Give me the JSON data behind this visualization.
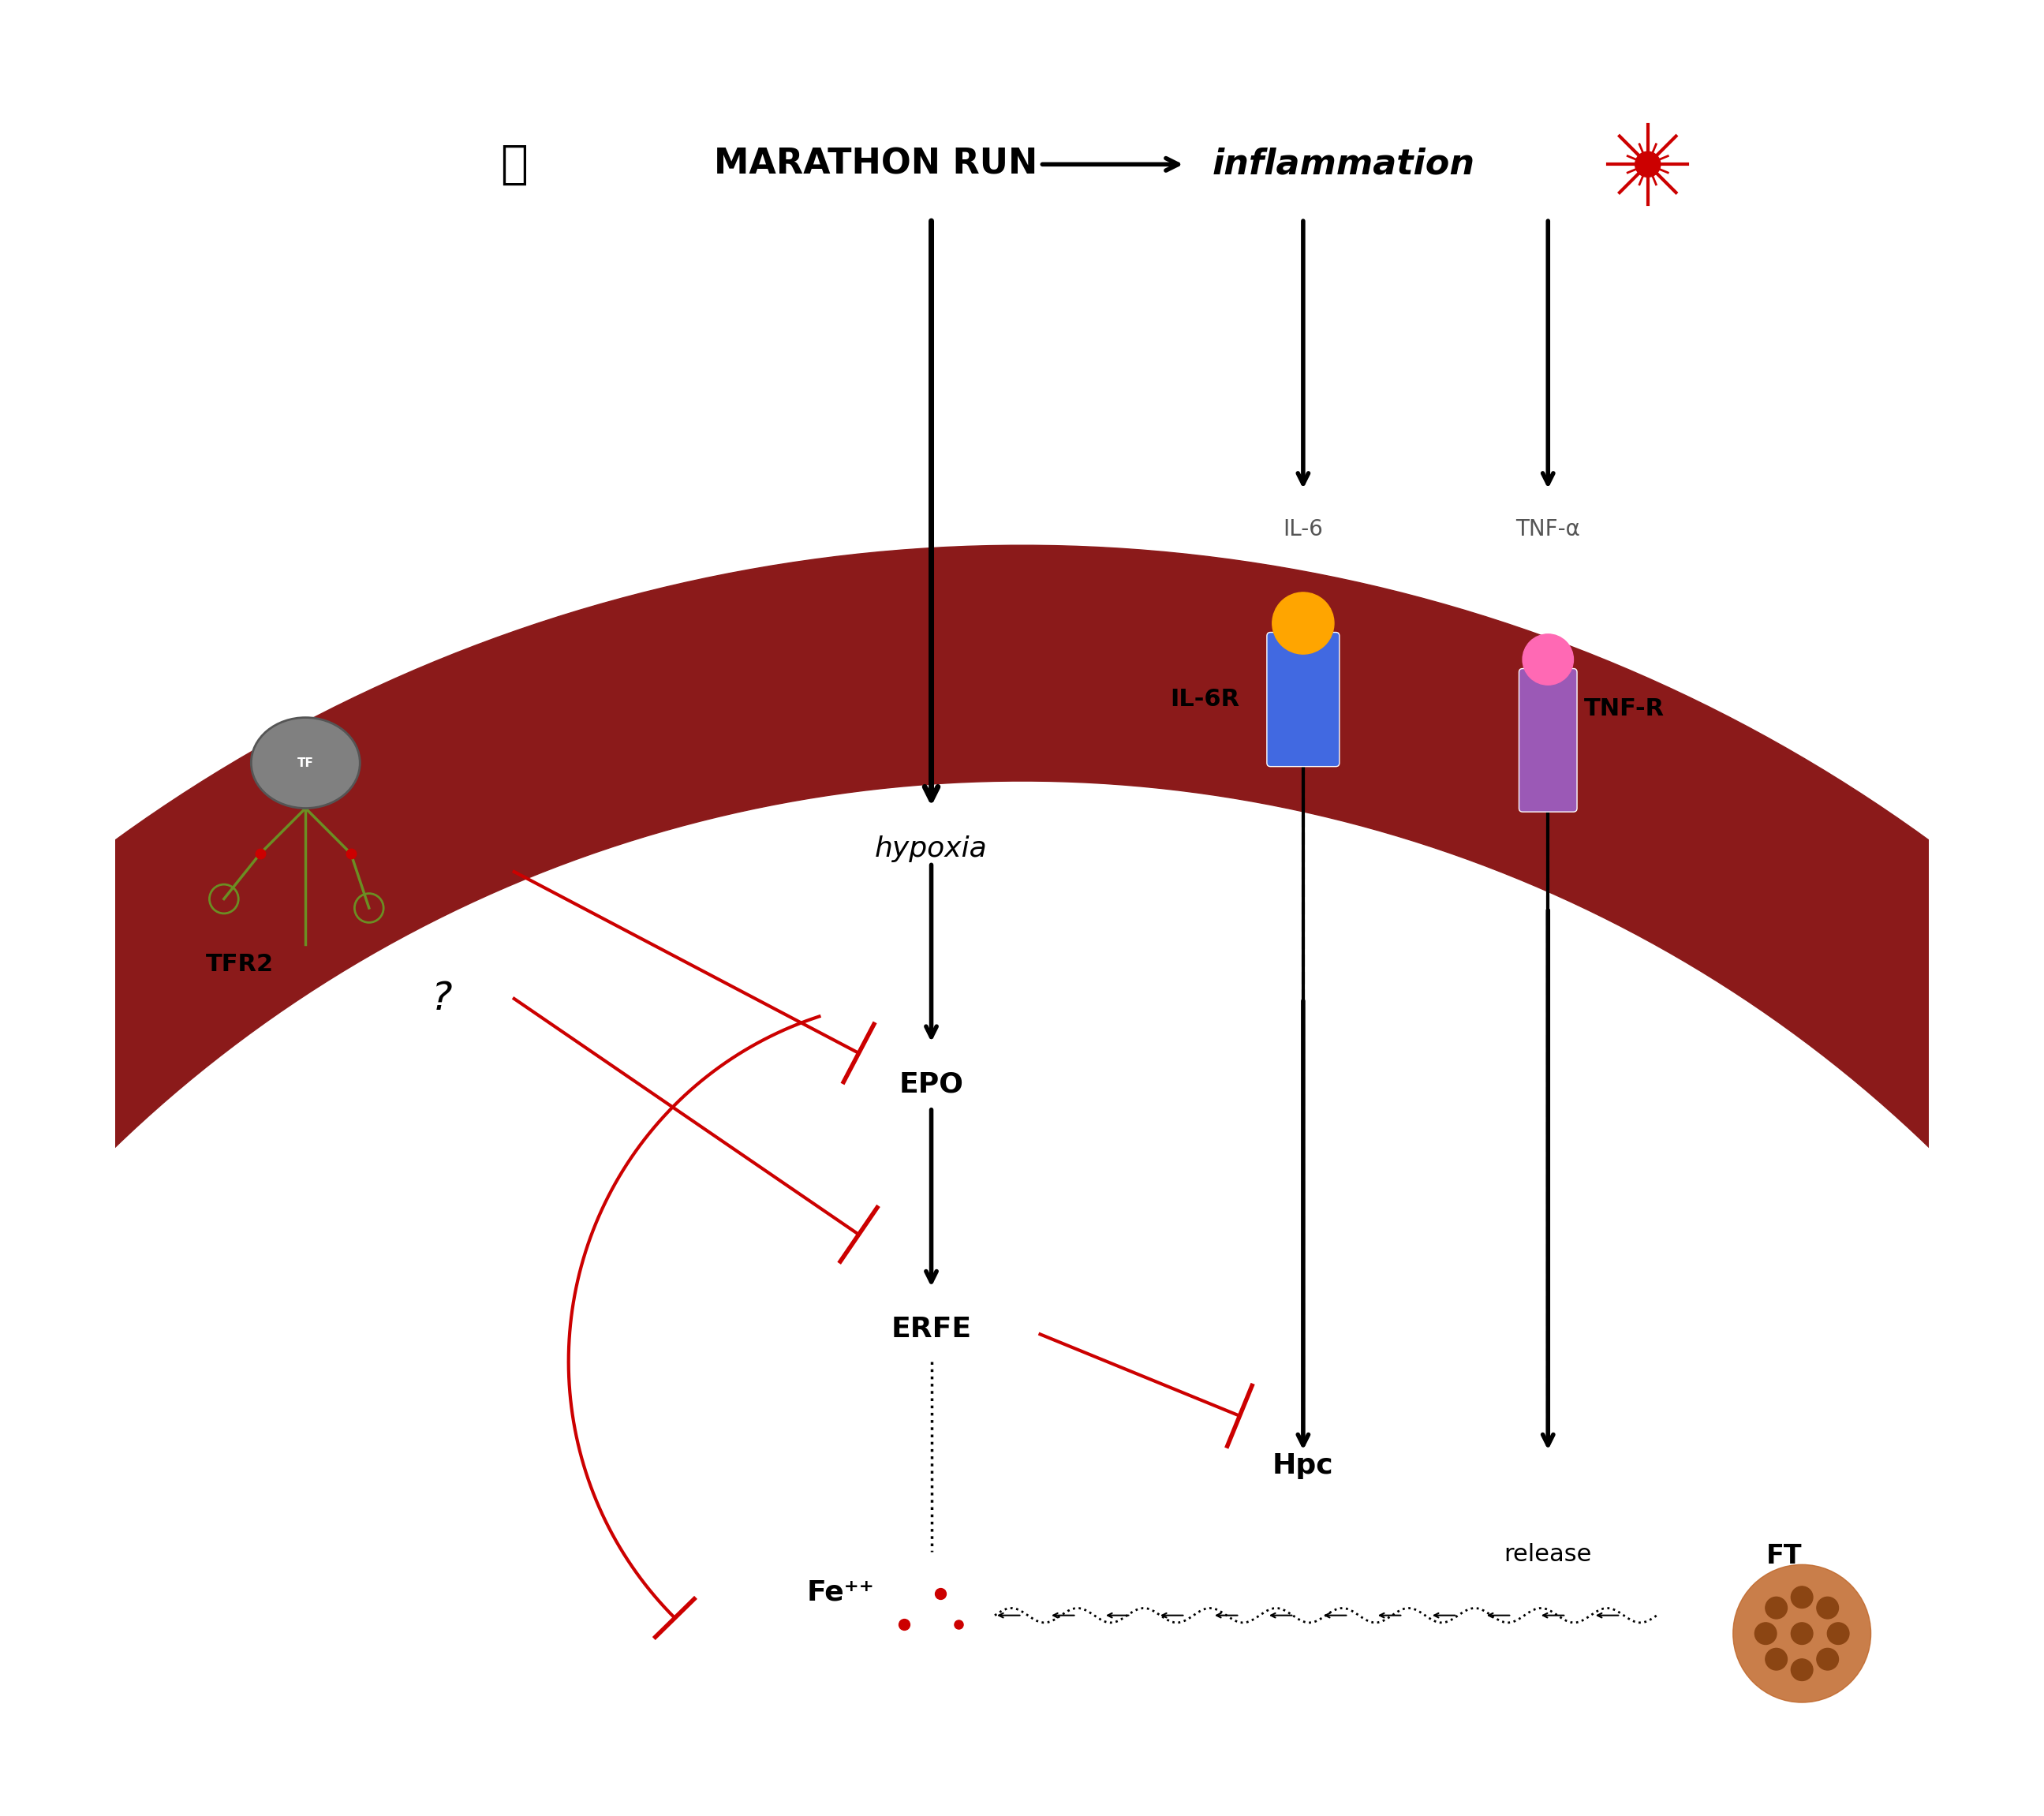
{
  "background": "#ffffff",
  "fig_width": 25.91,
  "fig_height": 23.02,
  "title": "MARATHON RUN",
  "inflammation": "inflammation",
  "hypoxia": "hypoxia",
  "epo": "EPO",
  "erfe": "ERFE",
  "hpc": "Hpc",
  "il6": "IL-6",
  "tnfa": "TNF-α",
  "il6r": "IL-6R",
  "tnfr": "TNF-R",
  "tfr2": "TFR2",
  "tf": "TF",
  "release": "release",
  "ft": "FT",
  "fe": "Fe⁺⁺",
  "question": "?",
  "cell_color": "#8B1A1A",
  "arrow_color": "#1a1a1a",
  "red_color": "#cc0000",
  "il6r_blue": "#4169E1",
  "il6r_orange": "#FFA500",
  "tnfr_purple": "#9B59B6",
  "tnfr_pink": "#FF69B4",
  "tfr2_gray": "#808080",
  "tfr2_green": "#6B8E23",
  "fe_red": "#cc0000"
}
